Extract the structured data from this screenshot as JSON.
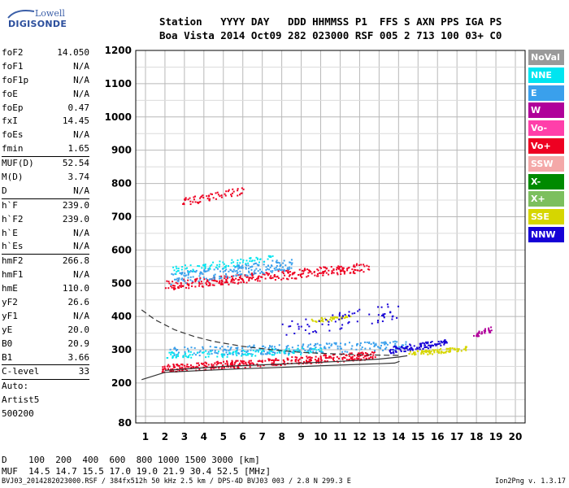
{
  "logo": {
    "line1": "Lowell",
    "line2": "DIGISONDE"
  },
  "header": {
    "line1": "Station   YYYY DAY   DDD HHMMSS P1  FFS S AXN PPS IGA PS",
    "line2": "Boa Vista 2014 Oct09 282 023000 RSF 005 2 713 100 03+ C0"
  },
  "params": [
    {
      "name": "foF2",
      "value": "14.050"
    },
    {
      "name": "foF1",
      "value": "N/A"
    },
    {
      "name": "foF1p",
      "value": "N/A"
    },
    {
      "name": "foE",
      "value": "N/A"
    },
    {
      "name": "foEp",
      "value": "0.47"
    },
    {
      "name": "fxI",
      "value": "14.45"
    },
    {
      "name": "foEs",
      "value": "N/A"
    },
    {
      "name": "fmin",
      "value": "1.65",
      "sep_after": true
    },
    {
      "name": "MUF(D)",
      "value": "52.54"
    },
    {
      "name": "M(D)",
      "value": "3.74"
    },
    {
      "name": "D",
      "value": "N/A",
      "sep_after": true
    },
    {
      "name": "h`F",
      "value": "239.0"
    },
    {
      "name": "h`F2",
      "value": "239.0"
    },
    {
      "name": "h`E",
      "value": "N/A"
    },
    {
      "name": "h`Es",
      "value": "N/A",
      "sep_after": true
    },
    {
      "name": "hmF2",
      "value": "266.8"
    },
    {
      "name": "hmF1",
      "value": "N/A"
    },
    {
      "name": "hmE",
      "value": "110.0"
    },
    {
      "name": "yF2",
      "value": "26.6"
    },
    {
      "name": "yF1",
      "value": "N/A"
    },
    {
      "name": "yE",
      "value": "20.0"
    },
    {
      "name": "B0",
      "value": "20.9"
    },
    {
      "name": "B1",
      "value": "3.66",
      "sep_after": true
    },
    {
      "name": "C-level",
      "value": "33",
      "sep_after": true
    }
  ],
  "autoscale": [
    "Auto:",
    "Artist5",
    "500200"
  ],
  "footer": {
    "d_row": "D    100  200  400  600  800 1000 1500 3000 [km]",
    "muf_row": "MUF  14.5 14.7 15.5 17.0 19.0 21.9 30.4 52.5 [MHz]",
    "file_info": "BVJ03_2014282023000.RSF / 384fx512h 50 kHz 2.5 km / DPS-4D BVJ03 003 / 2.8 N 299.3 E",
    "version": "Ion2Png v. 1.3.17"
  },
  "legend": [
    {
      "label": "NoVal",
      "color": "#9a9a9a"
    },
    {
      "label": "NNE",
      "color": "#00e5f0"
    },
    {
      "label": "E",
      "color": "#3aa0ec"
    },
    {
      "label": "W",
      "color": "#b0009a"
    },
    {
      "label": "Vo-",
      "color": "#ff3faa"
    },
    {
      "label": "Vo+",
      "color": "#ee0022"
    },
    {
      "label": "SSW",
      "color": "#f4a8a8"
    },
    {
      "label": "X-",
      "color": "#008a00"
    },
    {
      "label": "X+",
      "color": "#7cbf5e"
    },
    {
      "label": "SSE",
      "color": "#d6d600"
    },
    {
      "label": "NNW",
      "color": "#1600d6"
    }
  ],
  "chart_data": {
    "type": "scatter",
    "xlabel": "",
    "ylabel": "",
    "xlim": [
      0.5,
      20.5
    ],
    "ylim": [
      80,
      1200
    ],
    "x_ticks": [
      1,
      2,
      3,
      4,
      5,
      6,
      7,
      8,
      9,
      10,
      11,
      12,
      13,
      14,
      15,
      16,
      17,
      18,
      19,
      20
    ],
    "y_ticks": [
      80,
      200,
      300,
      400,
      500,
      600,
      700,
      800,
      900,
      1000,
      1100,
      1200
    ],
    "grid": true,
    "clusters": [
      {
        "name": "F2 O-trace",
        "color": "#ee0022",
        "x": [
          1.8,
          12.8
        ],
        "y": [
          245,
          285
        ],
        "spread": 12,
        "n": 380
      },
      {
        "name": "F2 O-trace",
        "color": "#3aa0ec",
        "x": [
          2.2,
          14.5
        ],
        "y": [
          295,
          315
        ],
        "spread": 14,
        "n": 260
      },
      {
        "name": "F2 O-trace",
        "color": "#00e5f0",
        "x": [
          2.0,
          10.0
        ],
        "y": [
          285,
          300
        ],
        "spread": 10,
        "n": 120
      },
      {
        "name": "F2 X-trace",
        "color": "#1600d6",
        "x": [
          13.5,
          16.5
        ],
        "y": [
          300,
          325
        ],
        "spread": 10,
        "n": 110
      },
      {
        "name": "F2 SSE",
        "color": "#d6d600",
        "x": [
          14.5,
          17.5
        ],
        "y": [
          290,
          305
        ],
        "spread": 7,
        "n": 90
      },
      {
        "name": "2F multiple",
        "color": "#ee0022",
        "x": [
          2.0,
          12.5
        ],
        "y": [
          495,
          550
        ],
        "spread": 14,
        "n": 320
      },
      {
        "name": "2F multiple",
        "color": "#3aa0ec",
        "x": [
          2.2,
          8.5
        ],
        "y": [
          515,
          560
        ],
        "spread": 18,
        "n": 200
      },
      {
        "name": "2F multiple",
        "color": "#00e5f0",
        "x": [
          2.3,
          7.5
        ],
        "y": [
          540,
          575
        ],
        "spread": 12,
        "n": 80
      },
      {
        "name": "3F multiple",
        "color": "#ee0022",
        "x": [
          2.8,
          6.0
        ],
        "y": [
          745,
          780
        ],
        "spread": 12,
        "n": 60
      },
      {
        "name": "Es/oblique",
        "color": "#d6d600",
        "x": [
          9.5,
          11.5
        ],
        "y": [
          390,
          400
        ],
        "spread": 6,
        "n": 40
      },
      {
        "name": "Oblique",
        "color": "#1600d6",
        "x": [
          8.0,
          14.0
        ],
        "y": [
          360,
          420
        ],
        "spread": 25,
        "n": 70
      },
      {
        "name": "High-freq echo",
        "color": "#b0009a",
        "x": [
          17.8,
          18.8
        ],
        "y": [
          345,
          365
        ],
        "spread": 8,
        "n": 30
      }
    ],
    "curves": [
      {
        "name": "profile",
        "style": "solid",
        "x": [
          0.8,
          2.0,
          4.0,
          6.0,
          8.0,
          10.0,
          12.0,
          13.0,
          13.8,
          14.05
        ],
        "y": [
          210,
          232,
          238,
          243,
          247,
          252,
          256,
          258,
          260,
          265
        ]
      },
      {
        "name": "profile-x",
        "style": "solid",
        "x": [
          2.0,
          5.0,
          8.0,
          11.0,
          13.0,
          14.0,
          14.45
        ],
        "y": [
          238,
          250,
          257,
          265,
          272,
          278,
          282
        ]
      },
      {
        "name": "MUF",
        "style": "dashed",
        "x": [
          0.8,
          1.5,
          2.5,
          3.5,
          4.5,
          6.0,
          7.5,
          9.0,
          10.5,
          12.0,
          14.0
        ],
        "y": [
          420,
          390,
          360,
          340,
          325,
          310,
          300,
          292,
          288,
          285,
          283
        ]
      }
    ]
  }
}
